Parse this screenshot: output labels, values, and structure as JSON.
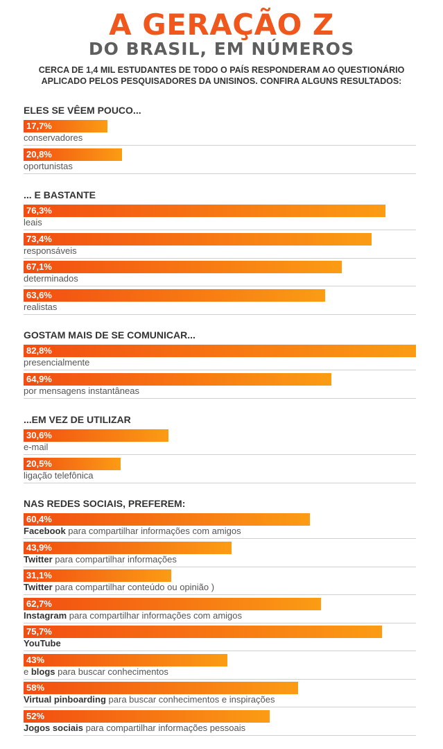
{
  "header": {
    "title": "A GERAÇÃO Z",
    "subtitle": "DO BRASIL, EM NÚMEROS",
    "intro_line1": "CERCA DE 1,4 MIL ESTUDANTES DE TODO O PAÍS RESPONDERAM AO QUESTIONÁRIO",
    "intro_line2": "APLICADO PELOS PESQUISADORES DA UNISINOS. CONFIRA ALGUNS RESULTADOS:"
  },
  "colors": {
    "bar_start": "#f24d12",
    "bar_end": "#fb9c14",
    "title": "#f0571c",
    "subtitle": "#5e5e5e"
  },
  "chart_data": {
    "type": "bar",
    "orientation": "horizontal",
    "unit": "%",
    "xlim": [
      0,
      82.8
    ],
    "sections": [
      {
        "title": "ELES SE VÊEM POUCO...",
        "items": [
          {
            "value": 17.7,
            "value_label": "17,7%",
            "label_bold": "",
            "label_rest": "conservadores"
          },
          {
            "value": 20.8,
            "value_label": "20,8%",
            "label_bold": "",
            "label_rest": "oportunistas"
          }
        ]
      },
      {
        "title": "... E BASTANTE",
        "items": [
          {
            "value": 76.3,
            "value_label": "76,3%",
            "label_bold": "",
            "label_rest": "leais"
          },
          {
            "value": 73.4,
            "value_label": "73,4%",
            "label_bold": "",
            "label_rest": "responsáveis"
          },
          {
            "value": 67.1,
            "value_label": "67,1%",
            "label_bold": "",
            "label_rest": "determinados"
          },
          {
            "value": 63.6,
            "value_label": "63,6%",
            "label_bold": "",
            "label_rest": "realistas"
          }
        ]
      },
      {
        "title": "GOSTAM MAIS DE SE COMUNICAR...",
        "items": [
          {
            "value": 82.8,
            "value_label": "82,8%",
            "label_bold": "",
            "label_rest": "presencialmente"
          },
          {
            "value": 64.9,
            "value_label": "64,9%",
            "label_bold": "",
            "label_rest": "por mensagens instantâneas"
          }
        ]
      },
      {
        "title": "...EM VEZ DE UTILIZAR",
        "items": [
          {
            "value": 30.6,
            "value_label": "30,6%",
            "label_bold": "",
            "label_rest": "e-mail"
          },
          {
            "value": 20.5,
            "value_label": "20,5%",
            "label_bold": "",
            "label_rest": "ligação telefônica"
          }
        ]
      },
      {
        "title": "NAS REDES SOCIAIS, PREFEREM:",
        "items": [
          {
            "value": 60.4,
            "value_label": "60,4%",
            "label_bold": "Facebook",
            "label_rest": " para compartilhar informações com amigos"
          },
          {
            "value": 43.9,
            "value_label": "43,9%",
            "label_bold": "Twitter",
            "label_rest": " para compartilhar informações"
          },
          {
            "value": 31.1,
            "value_label": "31,1%",
            "label_bold": "Twitter",
            "label_rest": " para compartilhar conteúdo ou opinião )"
          },
          {
            "value": 62.7,
            "value_label": "62,7%",
            "label_bold": "Instagram",
            "label_rest": " para compartilhar informações com amigos"
          },
          {
            "value": 75.7,
            "value_label": "75,7%",
            "label_bold": "YouTube",
            "label_rest": ""
          },
          {
            "value": 43,
            "value_label": "43%",
            "label_bold": "",
            "label_rest": "e blogs para buscar conhecimentos"
          },
          {
            "value": 58,
            "value_label": "58%",
            "label_bold": "Virtual pinboarding",
            "label_rest": " para buscar conhecimentos e inspirações"
          },
          {
            "value": 52,
            "value_label": "52%",
            "label_bold": "Jogos sociais",
            "label_rest": " para compartilhar informações pessoais"
          }
        ]
      }
    ]
  }
}
